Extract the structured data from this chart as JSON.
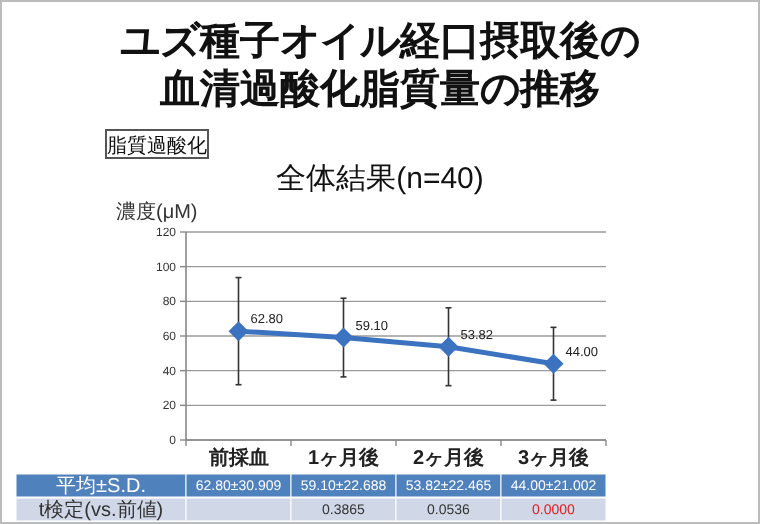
{
  "chart_data": {
    "type": "line",
    "title": "ユズ種子オイル経口摂取後の血清過酸化脂質量の推移",
    "subtitle": "全体結果(n=40)",
    "ylabel": "濃度(μM)",
    "categories": [
      "前採血",
      "1ヶ月後",
      "2ヶ月後",
      "3ヶ月後"
    ],
    "series": [
      {
        "color": "#3b73c0",
        "values": [
          62.8,
          59.1,
          53.82,
          44.0
        ],
        "errors": [
          30.909,
          22.688,
          22.465,
          21.002
        ],
        "value_labels": [
          "62.80",
          "59.10",
          "53.82",
          "44.00"
        ]
      }
    ],
    "ylim": [
      0,
      120
    ],
    "yticks": [
      0,
      20,
      40,
      60,
      80,
      100,
      120
    ],
    "grid": "y",
    "marker": "diamond",
    "line_style": "solid",
    "annotations": [
      "脂質過酸化",
      "平均±S.D.",
      "62.80±30.909",
      "59.10±22.688",
      "53.82±22.465",
      "44.00±21.002",
      "t検定(vs.前値)",
      "0.3865",
      "0.0536",
      "0.0000"
    ]
  }
}
